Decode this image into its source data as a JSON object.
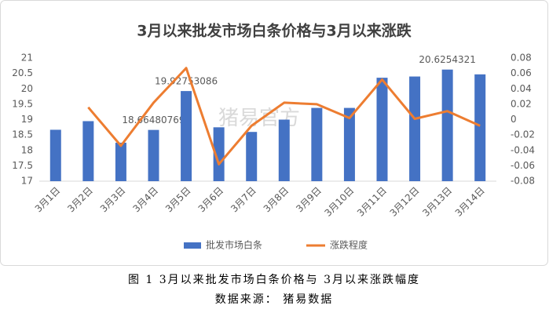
{
  "chart_data": {
    "type": "bar",
    "title": "3月以来批发市场白条价格与3月以来涨跌",
    "watermark": "猪易官方",
    "categories": [
      "3月1日",
      "3月2日",
      "3月3日",
      "3月4日",
      "3月5日",
      "3月6日",
      "3月7日",
      "3月8日",
      "3月9日",
      "3月10日",
      "3月11日",
      "3月12日",
      "3月13日",
      "3月14日"
    ],
    "series": [
      {
        "name": "批发市场白条",
        "type": "bar",
        "color": "#4472c4",
        "values": [
          18.67,
          18.95,
          18.25,
          18.66480769,
          19.92753086,
          18.75,
          18.6,
          19.0,
          19.38,
          19.38,
          20.36,
          20.4,
          20.6254321,
          20.47
        ],
        "value_labels": [
          null,
          null,
          null,
          "18.66480769",
          "19.92753086",
          null,
          null,
          null,
          null,
          null,
          null,
          null,
          "20.6254321",
          null
        ]
      },
      {
        "name": "涨跌程度",
        "type": "line",
        "color": "#ed7d31",
        "axis": "y2",
        "values": [
          null,
          0.016,
          -0.034,
          0.022,
          0.067,
          -0.058,
          -0.008,
          0.022,
          0.02,
          0.002,
          0.052,
          0.001,
          0.011,
          -0.008
        ]
      }
    ],
    "ylim": [
      17,
      21
    ],
    "yticks": [
      17,
      17.5,
      18,
      18.5,
      19,
      19.5,
      20,
      20.5,
      21
    ],
    "y2lim": [
      -0.08,
      0.08
    ],
    "y2ticks": [
      -0.08,
      -0.06,
      -0.04,
      -0.02,
      0,
      0.02,
      0.04,
      0.06,
      0.08
    ],
    "grid": false,
    "legend": "bottom"
  },
  "caption": {
    "figure": "图 1 3月以来批发市场白条价格与 3月以来涨跌幅度",
    "source": "数据来源： 猪易数据"
  }
}
